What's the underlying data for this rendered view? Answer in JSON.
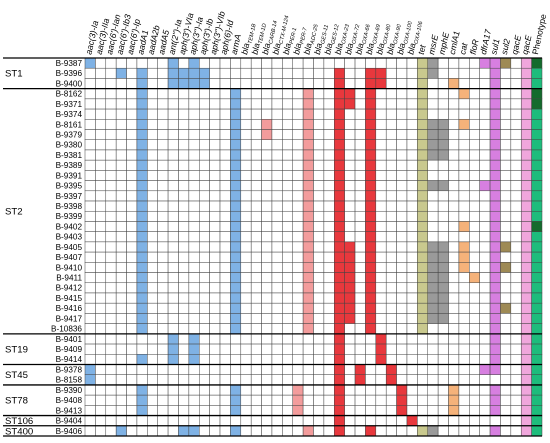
{
  "colors": {
    "aminoglycoside": "#7fb2e5",
    "tem_ctx": "#f39c9c",
    "oxa": "#e8383d",
    "tet": "#c9c98e",
    "msr_mph": "#9a9a9a",
    "cmlA": "#f5b27a",
    "sul1": "#d77fe0",
    "sul2": "#9e8a55",
    "qac": "#f0a6dc",
    "phenotype_dark": "#146b2d",
    "phenotype_light": "#1ebc7c",
    "line": "#000000",
    "grid": "#444444"
  },
  "columns": [
    {
      "id": "c0",
      "label": "aac(3)-Ia",
      "sub": "",
      "group": "aminoglycoside"
    },
    {
      "id": "c1",
      "label": "aac(3)-IIa",
      "sub": "",
      "group": "aminoglycoside"
    },
    {
      "id": "c2",
      "label": "aac(6')-Ian",
      "sub": "",
      "group": "aminoglycoside"
    },
    {
      "id": "c3",
      "label": "aac(6')-Ib3",
      "sub": "",
      "group": "aminoglycoside"
    },
    {
      "id": "c4",
      "label": "aac(6')-Ip",
      "sub": "",
      "group": "aminoglycoside"
    },
    {
      "id": "c5",
      "label": "aadA1",
      "sub": "",
      "group": "aminoglycoside"
    },
    {
      "id": "c6",
      "label": "aadA2b",
      "sub": "",
      "group": "aminoglycoside"
    },
    {
      "id": "c7",
      "label": "aadA5",
      "sub": "",
      "group": "aminoglycoside"
    },
    {
      "id": "c8",
      "label": "ant(2'')-Ia",
      "sub": "",
      "group": "aminoglycoside"
    },
    {
      "id": "c9",
      "label": "aph(3')-VIa",
      "sub": "",
      "group": "aminoglycoside"
    },
    {
      "id": "c10",
      "label": "aph(3'')-Ia",
      "sub": "",
      "group": "aminoglycoside"
    },
    {
      "id": "c11",
      "label": "aph(3')-Ib",
      "sub": "",
      "group": "aminoglycoside"
    },
    {
      "id": "c12",
      "label": "aph(3'')-VIb",
      "sub": "",
      "group": "aminoglycoside"
    },
    {
      "id": "c13",
      "label": "aph(6)-Id",
      "sub": "",
      "group": "aminoglycoside"
    },
    {
      "id": "c14",
      "label": "armA",
      "sub": "",
      "group": "aminoglycoside"
    },
    {
      "id": "c15",
      "label": "bla",
      "sub": "TEM-1B",
      "group": "tem_ctx"
    },
    {
      "id": "c16",
      "label": "bla",
      "sub": "TEM-1D",
      "group": "tem_ctx"
    },
    {
      "id": "c17",
      "label": "bla",
      "sub": "CARB-14",
      "group": "tem_ctx"
    },
    {
      "id": "c18",
      "label": "bla",
      "sub": "CTX-M-124",
      "group": "tem_ctx"
    },
    {
      "id": "c19",
      "label": "bla",
      "sub": "PER-1",
      "group": "tem_ctx"
    },
    {
      "id": "c20",
      "label": "bla",
      "sub": "PER-7",
      "group": "tem_ctx"
    },
    {
      "id": "c21",
      "label": "bla",
      "sub": "ADC-25",
      "group": "tem_ctx"
    },
    {
      "id": "c22",
      "label": "bla",
      "sub": "GES-11",
      "group": "tem_ctx"
    },
    {
      "id": "c23",
      "label": "bla",
      "sub": "GES-12",
      "group": "tem_ctx"
    },
    {
      "id": "c24",
      "label": "bla",
      "sub": "OXA-23",
      "group": "oxa"
    },
    {
      "id": "c25",
      "label": "bla",
      "sub": "OXA-72",
      "group": "oxa"
    },
    {
      "id": "c26",
      "label": "bla",
      "sub": "OXA-66",
      "group": "oxa"
    },
    {
      "id": "c27",
      "label": "bla",
      "sub": "OXA-69",
      "group": "oxa"
    },
    {
      "id": "c28",
      "label": "bla",
      "sub": "OXA-80",
      "group": "oxa"
    },
    {
      "id": "c29",
      "label": "bla",
      "sub": "OXA-90",
      "group": "oxa"
    },
    {
      "id": "c30",
      "label": "bla",
      "sub": "OXA-100",
      "group": "oxa"
    },
    {
      "id": "c31",
      "label": "bla",
      "sub": "OXA-106",
      "group": "oxa"
    },
    {
      "id": "c32",
      "label": "tet",
      "sub": "",
      "group": "tet"
    },
    {
      "id": "c33",
      "label": "msrE",
      "sub": "",
      "group": "msr_mph"
    },
    {
      "id": "c34",
      "label": "mphE",
      "sub": "",
      "group": "msr_mph"
    },
    {
      "id": "c35",
      "label": "cmlA1",
      "sub": "",
      "group": "cmlA"
    },
    {
      "id": "c36",
      "label": "cat",
      "sub": "",
      "group": "cmlA"
    },
    {
      "id": "c37",
      "label": "floR",
      "sub": "",
      "group": "cmlA"
    },
    {
      "id": "c38",
      "label": "dfrA17",
      "sub": "",
      "group": "sul1"
    },
    {
      "id": "c39",
      "label": "sul1",
      "sub": "",
      "group": "sul1"
    },
    {
      "id": "c40",
      "label": "sul2",
      "sub": "",
      "group": "sul2"
    },
    {
      "id": "c41",
      "label": "qacE",
      "sub": "",
      "group": "qac"
    },
    {
      "id": "c42",
      "label": "qacE",
      "sub": "",
      "group": "qac"
    },
    {
      "id": "c43",
      "label": "Phenotype",
      "sub": "",
      "group": "phenotype"
    }
  ],
  "groups": [
    {
      "label": "ST1",
      "rows": [
        {
          "strain": "B-9387",
          "cells": [
            0,
            8,
            10,
            32,
            33,
            38,
            39,
            40,
            42,
            43
          ],
          "pheno": "dark"
        },
        {
          "strain": "B-9396",
          "cells": [
            3,
            5,
            8,
            9,
            10,
            11,
            24,
            27,
            28,
            32,
            33,
            39,
            42,
            43
          ],
          "pheno": "light"
        },
        {
          "strain": "B-9400",
          "cells": [
            5,
            8,
            9,
            10,
            11,
            24,
            27,
            28,
            32,
            35,
            39,
            42,
            43
          ],
          "pheno": "light"
        }
      ]
    },
    {
      "label": "ST2",
      "rows": [
        {
          "strain": "B-8162",
          "cells": [
            5,
            14,
            21,
            24,
            25,
            27,
            32,
            36,
            39,
            42,
            43
          ],
          "pheno": "dark"
        },
        {
          "strain": "B-9371",
          "cells": [
            5,
            14,
            21,
            24,
            25,
            27,
            32,
            39,
            42,
            43
          ],
          "pheno": "dark"
        },
        {
          "strain": "B-9374",
          "cells": [
            5,
            14,
            21,
            24,
            27,
            32,
            39,
            42,
            43
          ],
          "pheno": "light"
        },
        {
          "strain": "B-8161",
          "cells": [
            5,
            14,
            17,
            21,
            24,
            27,
            32,
            33,
            34,
            36,
            39,
            42,
            43
          ],
          "pheno": "light"
        },
        {
          "strain": "B-9379",
          "cells": [
            5,
            14,
            17,
            21,
            24,
            27,
            32,
            33,
            34,
            39,
            42,
            43
          ],
          "pheno": "light"
        },
        {
          "strain": "B-9380",
          "cells": [
            5,
            14,
            21,
            24,
            27,
            32,
            33,
            34,
            39,
            42,
            43
          ],
          "pheno": "light"
        },
        {
          "strain": "B-9381",
          "cells": [
            5,
            14,
            21,
            24,
            27,
            32,
            33,
            34,
            39,
            42,
            43
          ],
          "pheno": "light"
        },
        {
          "strain": "B-9389",
          "cells": [
            5,
            14,
            21,
            24,
            27,
            32,
            39,
            42,
            43
          ],
          "pheno": "light"
        },
        {
          "strain": "B-9391",
          "cells": [
            5,
            14,
            21,
            24,
            27,
            32,
            39,
            42,
            43
          ],
          "pheno": "light"
        },
        {
          "strain": "B-9395",
          "cells": [
            5,
            14,
            21,
            24,
            27,
            32,
            33,
            34,
            38,
            39,
            42,
            43
          ],
          "pheno": "light"
        },
        {
          "strain": "B-9397",
          "cells": [
            5,
            14,
            21,
            24,
            27,
            32,
            39,
            42,
            43
          ],
          "pheno": "light"
        },
        {
          "strain": "B-9398",
          "cells": [
            5,
            14,
            21,
            24,
            27,
            32,
            39,
            42,
            43
          ],
          "pheno": "light"
        },
        {
          "strain": "B-9399",
          "cells": [
            5,
            14,
            21,
            24,
            27,
            32,
            39,
            42,
            43
          ],
          "pheno": "light"
        },
        {
          "strain": "B-9402",
          "cells": [
            5,
            14,
            21,
            24,
            27,
            32,
            36,
            39,
            42,
            43
          ],
          "pheno": "dark"
        },
        {
          "strain": "B-9403",
          "cells": [
            5,
            14,
            21,
            24,
            27,
            32,
            39,
            42,
            43
          ],
          "pheno": "light"
        },
        {
          "strain": "B-9405",
          "cells": [
            5,
            14,
            21,
            24,
            25,
            27,
            32,
            33,
            34,
            36,
            39,
            40,
            42,
            43
          ],
          "pheno": "light"
        },
        {
          "strain": "B-9407",
          "cells": [
            5,
            14,
            21,
            24,
            25,
            27,
            32,
            33,
            34,
            36,
            39,
            42,
            43
          ],
          "pheno": "light"
        },
        {
          "strain": "B-9410",
          "cells": [
            5,
            14,
            21,
            24,
            25,
            27,
            32,
            33,
            34,
            36,
            39,
            40,
            42,
            43
          ],
          "pheno": "light"
        },
        {
          "strain": "B-9411",
          "cells": [
            5,
            14,
            21,
            24,
            25,
            27,
            32,
            33,
            34,
            37,
            39,
            42,
            43
          ],
          "pheno": "light"
        },
        {
          "strain": "B-9412",
          "cells": [
            5,
            14,
            21,
            24,
            25,
            27,
            32,
            33,
            34,
            39,
            42,
            43
          ],
          "pheno": "light"
        },
        {
          "strain": "B-9415",
          "cells": [
            5,
            14,
            21,
            24,
            25,
            27,
            32,
            33,
            34,
            39,
            42,
            43
          ],
          "pheno": "light"
        },
        {
          "strain": "B-9416",
          "cells": [
            5,
            14,
            21,
            24,
            25,
            27,
            32,
            33,
            34,
            39,
            40,
            42,
            43
          ],
          "pheno": "light"
        },
        {
          "strain": "B-9417",
          "cells": [
            5,
            14,
            21,
            24,
            25,
            27,
            32,
            33,
            34,
            39,
            42,
            43
          ],
          "pheno": "light"
        },
        {
          "strain": "B-10836",
          "cells": [
            5,
            14,
            21,
            24,
            27,
            32,
            39,
            42,
            43
          ],
          "pheno": "light"
        }
      ]
    },
    {
      "label": "ST19",
      "rows": [
        {
          "strain": "B-9401",
          "cells": [
            8,
            10,
            24,
            28,
            39,
            42,
            43
          ],
          "pheno": "light"
        },
        {
          "strain": "B-9409",
          "cells": [
            8,
            10,
            24,
            28,
            39,
            42,
            43
          ],
          "pheno": "light"
        },
        {
          "strain": "B-9414",
          "cells": [
            5,
            8,
            10,
            24,
            28,
            39,
            42,
            43
          ],
          "pheno": "light"
        }
      ]
    },
    {
      "label": "ST45",
      "rows": [
        {
          "strain": "B-9378",
          "cells": [
            0,
            24,
            26,
            29,
            38,
            39,
            42,
            43
          ],
          "pheno": "light"
        },
        {
          "strain": "B-8158",
          "cells": [
            0,
            24,
            26,
            29,
            42,
            43
          ],
          "pheno": "light"
        }
      ]
    },
    {
      "label": "ST78",
      "rows": [
        {
          "strain": "B-9390",
          "cells": [
            5,
            14,
            20,
            24,
            30,
            35,
            39,
            42,
            43
          ],
          "pheno": "light"
        },
        {
          "strain": "B-9408",
          "cells": [
            5,
            14,
            20,
            24,
            30,
            35,
            39,
            42,
            43
          ],
          "pheno": "light"
        },
        {
          "strain": "B-9413",
          "cells": [
            5,
            14,
            20,
            24,
            30,
            35,
            39,
            42,
            43
          ],
          "pheno": "light"
        }
      ]
    },
    {
      "label": "ST106",
      "rows": [
        {
          "strain": "B-9404",
          "cells": [
            24,
            31,
            42,
            43
          ],
          "pheno": "light"
        }
      ]
    },
    {
      "label": "ST400",
      "rows": [
        {
          "strain": "B-9406",
          "cells": [
            3,
            9,
            10,
            14,
            21,
            24,
            27,
            32,
            33,
            39,
            42,
            43
          ],
          "pheno": "light"
        }
      ]
    }
  ]
}
